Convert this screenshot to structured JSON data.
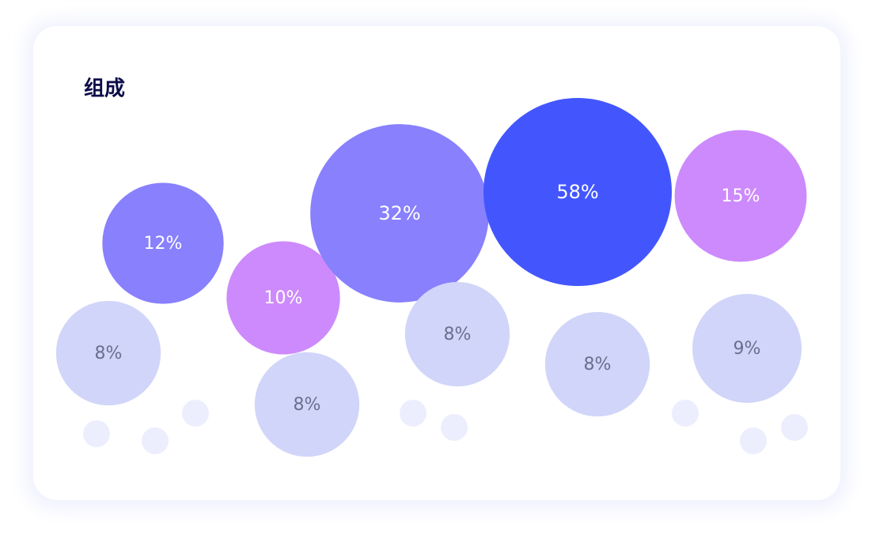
{
  "chart_data": {
    "type": "bubble",
    "title": "组成",
    "values": [
      12,
      10,
      32,
      58,
      15,
      8,
      8,
      8,
      8,
      9
    ],
    "value_labels": [
      "12%",
      "10%",
      "32%",
      "58%",
      "15%",
      "8%",
      "8%",
      "8%",
      "8%",
      "9%"
    ],
    "colors": [
      "#8880fd",
      "#cd8afc",
      "#8880fd",
      "#4356fe",
      "#cd8afc",
      "#d1d5f9",
      "#d1d5f9",
      "#d1d5f9",
      "#d1d5f9",
      "#d1d5f9"
    ],
    "label_colors": [
      "#ffffff",
      "#ffffff",
      "#ffffff",
      "#ffffff",
      "#ffffff",
      "#6b6f8e",
      "#6b6f8e",
      "#6b6f8e",
      "#6b6f8e",
      "#6b6f8e"
    ]
  }
}
